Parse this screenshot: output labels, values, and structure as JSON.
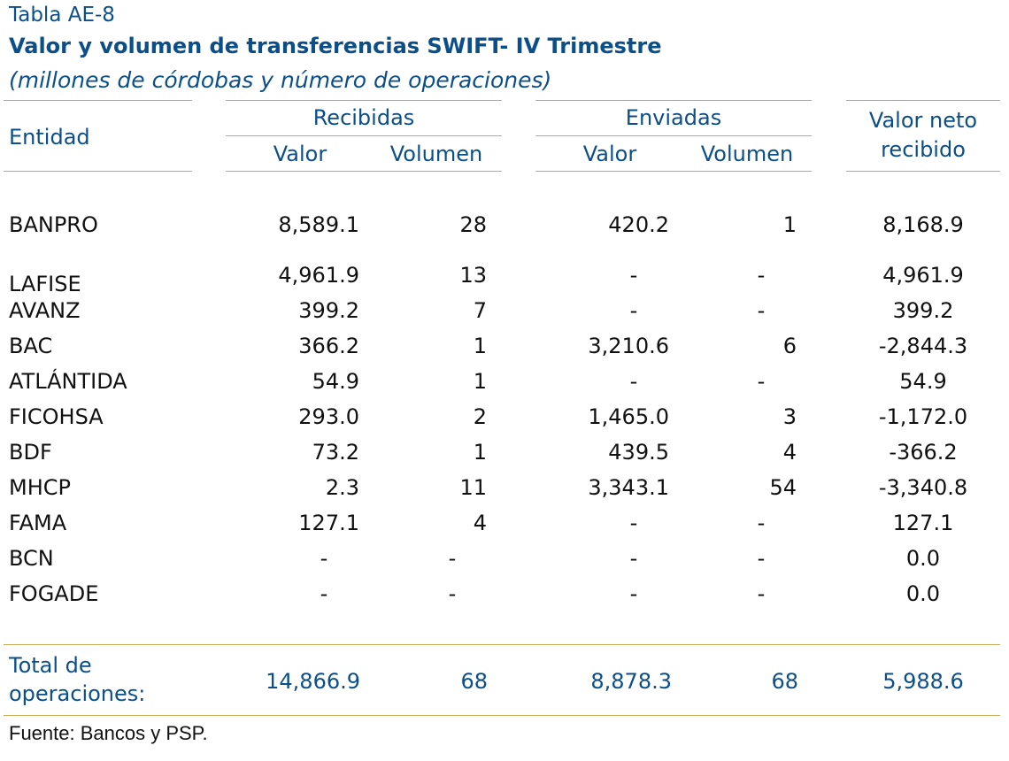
{
  "header": {
    "label": "Tabla AE-8",
    "title": "Valor y volumen de transferencias SWIFT- IV Trimestre",
    "subtitle": "(millones de córdobas y número de operaciones)"
  },
  "columns": {
    "entity": "Entidad",
    "received_group": "Recibidas",
    "sent_group": "Enviadas",
    "value": "Valor",
    "volume": "Volumen",
    "net_line1": "Valor neto",
    "net_line2": "recibido"
  },
  "rows": [
    {
      "entity": "BANPRO",
      "rec_val": "8,589.1",
      "rec_vol": "28",
      "env_val": "420.2",
      "env_vol": "1",
      "net": "8,168.9"
    },
    {
      "entity": "LAFISE",
      "rec_val": "4,961.9",
      "rec_vol": "13",
      "env_val": "-",
      "env_vol": "-",
      "net": "4,961.9"
    },
    {
      "entity": "AVANZ",
      "rec_val": "399.2",
      "rec_vol": "7",
      "env_val": "-",
      "env_vol": "-",
      "net": "399.2"
    },
    {
      "entity": "BAC",
      "rec_val": "366.2",
      "rec_vol": "1",
      "env_val": "3,210.6",
      "env_vol": "6",
      "net": "-2,844.3"
    },
    {
      "entity": "ATLÁNTIDA",
      "rec_val": "54.9",
      "rec_vol": "1",
      "env_val": "-",
      "env_vol": "-",
      "net": "54.9"
    },
    {
      "entity": "FICOHSA",
      "rec_val": "293.0",
      "rec_vol": "2",
      "env_val": "1,465.0",
      "env_vol": "3",
      "net": "-1,172.0"
    },
    {
      "entity": "BDF",
      "rec_val": "73.2",
      "rec_vol": "1",
      "env_val": "439.5",
      "env_vol": "4",
      "net": "-366.2"
    },
    {
      "entity": "MHCP",
      "rec_val": "2.3",
      "rec_vol": "11",
      "env_val": "3,343.1",
      "env_vol": "54",
      "net": "-3,340.8"
    },
    {
      "entity": "FAMA",
      "rec_val": "127.1",
      "rec_vol": "4",
      "env_val": "-",
      "env_vol": "-",
      "net": "127.1"
    },
    {
      "entity": "BCN",
      "rec_val": "-",
      "rec_vol": "-",
      "env_val": "-",
      "env_vol": "-",
      "net": "0.0"
    },
    {
      "entity": "FOGADE",
      "rec_val": "-",
      "rec_vol": "-",
      "env_val": "-",
      "env_vol": "-",
      "net": "0.0"
    }
  ],
  "total": {
    "label_line1": "Total de",
    "label_line2": "operaciones:",
    "rec_val": "14,866.9",
    "rec_vol": "68",
    "env_val": "8,878.3",
    "env_vol": "68",
    "net": "5,988.6"
  },
  "source": "Fuente: Bancos y PSP."
}
